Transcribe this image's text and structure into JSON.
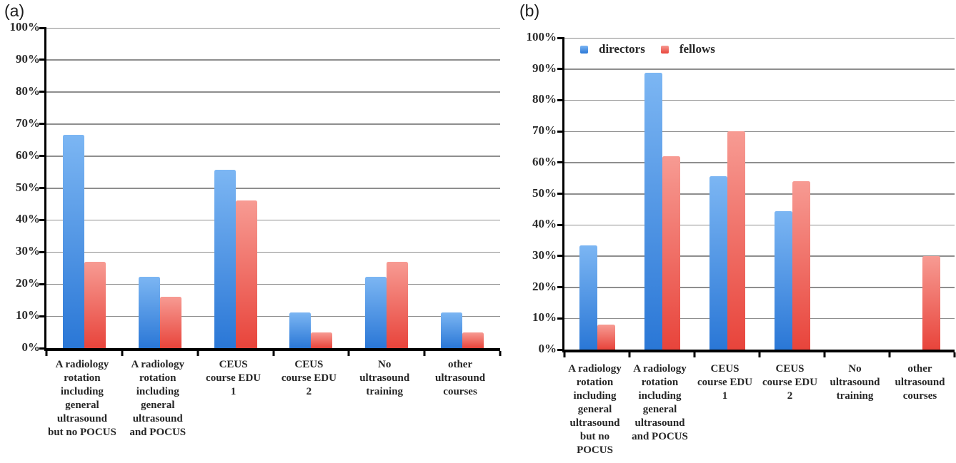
{
  "chart_data": [
    {
      "type": "bar",
      "panel_label": "(a)",
      "categories": [
        "A radiology rotation including general ultrasound but no POCUS",
        "A radiology rotation including general ultrasound and POCUS",
        "CEUS course EDU 1",
        "CEUS course EDU 2",
        "No ultrasound training",
        "other ultrasound courses"
      ],
      "categories_wrapped": [
        "A radiology\nrotation\nincluding\ngeneral\nultrasound\nbut no POCUS",
        "A radiology\nrotation\nincluding\ngeneral\nultrasound\nand POCUS",
        "CEUS\ncourse EDU\n1",
        "CEUS\ncourse EDU\n2",
        "No\nultrasound\ntraining",
        "other\nultrasound\ncourses"
      ],
      "series": [
        {
          "name": "directors",
          "color_top": "#7cb6f3",
          "color_bottom": "#2a77d6",
          "values": [
            66.7,
            22.2,
            55.6,
            11.1,
            22.2,
            11.1
          ]
        },
        {
          "name": "fellows",
          "color_top": "#f79b93",
          "color_bottom": "#e8443b",
          "values": [
            27,
            16,
            46,
            5,
            27,
            5
          ]
        }
      ],
      "y_ticks": [
        "100%",
        "90%",
        "80%",
        "70%",
        "60%",
        "50%",
        "40%",
        "30%",
        "20%",
        "10%",
        "0%"
      ],
      "ylim": [
        0,
        100
      ],
      "grid": true,
      "legend": null
    },
    {
      "type": "bar",
      "panel_label": "(b)",
      "categories": [
        "A radiology rotation including general ultrasound but no POCUS",
        "A radiology rotation including general ultrasound and POCUS",
        "CEUS course EDU 1",
        "CEUS course EDU 2",
        "No ultrasound training",
        "other ultrasound courses"
      ],
      "categories_wrapped": [
        "A radiology\nrotation\nincluding\ngeneral\nultrasound\nbut no\nPOCUS",
        "A radiology\nrotation\nincluding\ngeneral\nultrasound\nand POCUS",
        "CEUS\ncourse EDU\n1",
        "CEUS\ncourse EDU\n2",
        "No\nultrasound\ntraining",
        "other\nultrasound\ncourses"
      ],
      "series": [
        {
          "name": "directors",
          "color_top": "#7cb6f3",
          "color_bottom": "#2a77d6",
          "values": [
            33.3,
            88.9,
            55.6,
            44.4,
            0,
            0
          ]
        },
        {
          "name": "fellows",
          "color_top": "#f79b93",
          "color_bottom": "#e8443b",
          "values": [
            8,
            62,
            70,
            54,
            0,
            30
          ]
        }
      ],
      "y_ticks": [
        "100%",
        "90%",
        "80%",
        "70%",
        "60%",
        "50%",
        "40%",
        "30%",
        "20%",
        "10%",
        "0%"
      ],
      "ylim": [
        0,
        100
      ],
      "grid": true,
      "legend": {
        "position": "top-left-inside",
        "entries": [
          {
            "label": "directors",
            "color_top": "#7cb6f3",
            "color_bottom": "#2a77d6"
          },
          {
            "label": "fellows",
            "color_top": "#f79b93",
            "color_bottom": "#e8443b"
          }
        ]
      }
    }
  ]
}
